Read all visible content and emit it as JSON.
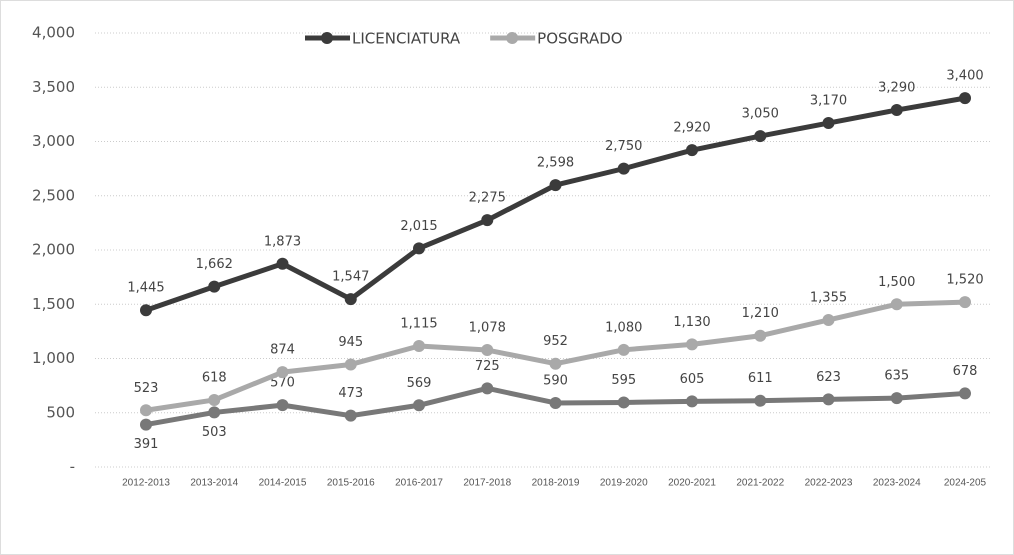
{
  "chart_data": {
    "type": "line",
    "categories": [
      "2012-2013",
      "2013-2014",
      "2014-2015",
      "2015-2016",
      "2016-2017",
      "2017-2018",
      "2018-2019",
      "2019-2020",
      "2020-2021",
      "2021-2022",
      "2022-2023",
      "2023-2024",
      "2024-205"
    ],
    "series": [
      {
        "name": "LICENCIATURA",
        "color": "#3b3b3b",
        "values": [
          1445,
          1662,
          1873,
          1547,
          2015,
          2275,
          2598,
          2750,
          2920,
          3050,
          3170,
          3290,
          3400
        ],
        "value_labels": [
          "1,445",
          "1,662",
          "1,873",
          "1,547",
          "2,015",
          "2,275",
          "2,598",
          "2,750",
          "2,920",
          "3,050",
          "3,170",
          "3,290",
          "3,400"
        ]
      },
      {
        "name": "POSGRADO",
        "color": "#a9a9a9",
        "values": [
          523,
          618,
          874,
          945,
          1115,
          1078,
          952,
          1080,
          1130,
          1210,
          1355,
          1500,
          1520
        ],
        "value_labels": [
          "523",
          "618",
          "874",
          "945",
          "1,115",
          "1,078",
          "952",
          "1,080",
          "1,130",
          "1,210",
          "1,355",
          "1,500",
          "1,520"
        ]
      },
      {
        "color": "#787878",
        "values": [
          391,
          503,
          570,
          473,
          569,
          725,
          590,
          595,
          605,
          611,
          623,
          635,
          678
        ]
      }
    ],
    "ylim": [
      0,
      4000
    ],
    "yticks": [
      {
        "value": 0,
        "label": "-"
      },
      500,
      {
        "value": 1000,
        "label": "1,000"
      },
      {
        "value": 1500,
        "label": "1,500"
      },
      {
        "value": 2000,
        "label": "2,000"
      },
      {
        "value": 2500,
        "label": "2,500"
      },
      {
        "value": 3000,
        "label": "3,000"
      },
      {
        "value": 3500,
        "label": "3,500"
      },
      {
        "value": 4000,
        "label": "4,000"
      }
    ],
    "grid": true,
    "legend": "top"
  }
}
